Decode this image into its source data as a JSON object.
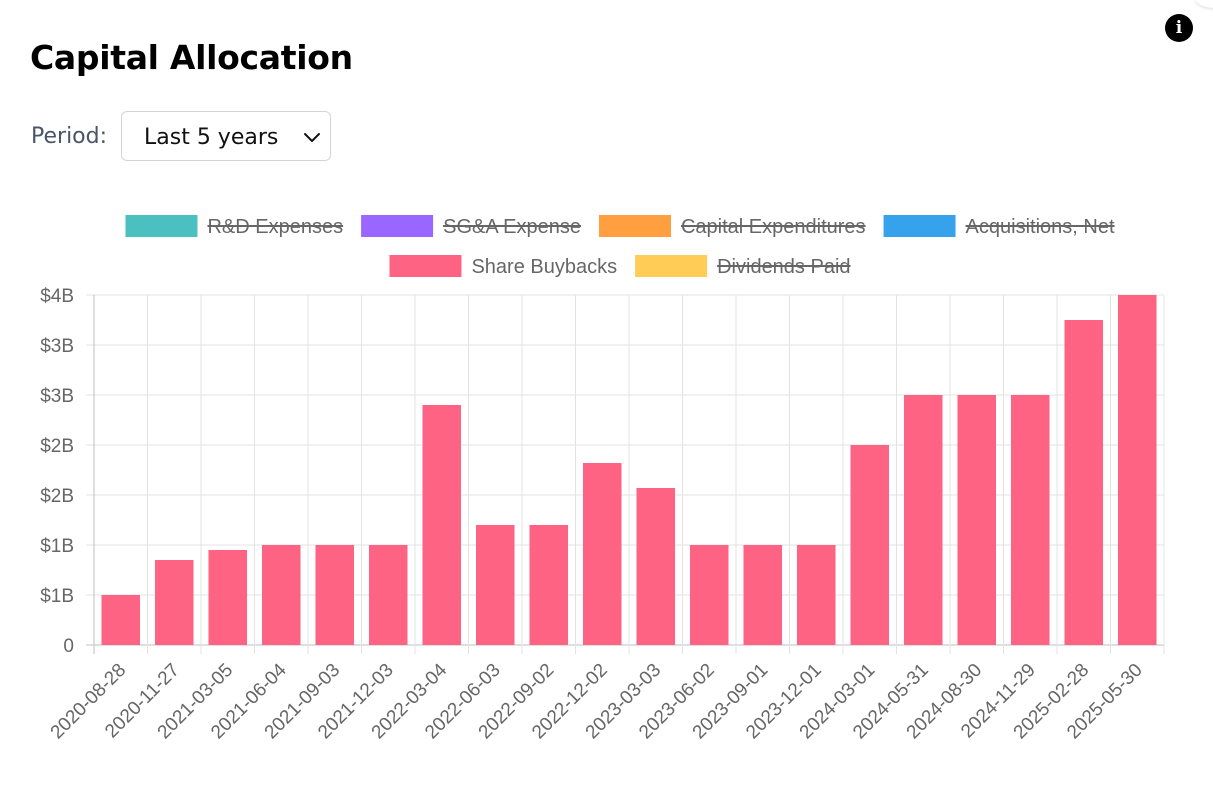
{
  "header": {
    "title": "Capital Allocation",
    "info_icon": "info-icon"
  },
  "filters": {
    "period_label": "Period:",
    "period_value": "Last 5 years",
    "period_icon": "chevron-down-icon"
  },
  "colors": {
    "rd": "#4bc0c0",
    "sga": "#9966ff",
    "capex": "#ff9f40",
    "acquisitions": "#36a2eb",
    "buybacks": "#ff6384",
    "dividends": "#ffcd56"
  },
  "chart_data": {
    "type": "bar",
    "title": "",
    "xlabel": "",
    "ylabel": "",
    "ylim": [
      0,
      3500000000
    ],
    "y_ticks": [
      {
        "value": 0,
        "label": "0"
      },
      {
        "value": 500000000,
        "label": "$1B"
      },
      {
        "value": 1000000000,
        "label": "$1B"
      },
      {
        "value": 1500000000,
        "label": "$2B"
      },
      {
        "value": 2000000000,
        "label": "$2B"
      },
      {
        "value": 2500000000,
        "label": "$3B"
      },
      {
        "value": 3000000000,
        "label": "$3B"
      },
      {
        "value": 3500000000,
        "label": "$4B"
      }
    ],
    "legend": [
      {
        "name": "R&D Expenses",
        "color": "#4bc0c0",
        "hidden": true
      },
      {
        "name": "SG&A Expense",
        "color": "#9966ff",
        "hidden": true
      },
      {
        "name": "Capital Expenditures",
        "color": "#ff9f40",
        "hidden": true
      },
      {
        "name": "Acquisitions, Net",
        "color": "#36a2eb",
        "hidden": true
      },
      {
        "name": "Share Buybacks",
        "color": "#ff6384",
        "hidden": false
      },
      {
        "name": "Dividends Paid",
        "color": "#ffcd56",
        "hidden": true
      }
    ],
    "legend_position": "top",
    "categories": [
      "2020-08-28",
      "2020-11-27",
      "2021-03-05",
      "2021-06-04",
      "2021-09-03",
      "2021-12-03",
      "2022-03-04",
      "2022-06-03",
      "2022-09-02",
      "2022-12-02",
      "2023-03-03",
      "2023-06-02",
      "2023-09-01",
      "2023-12-01",
      "2024-03-01",
      "2024-05-31",
      "2024-08-30",
      "2024-11-29",
      "2025-02-28",
      "2025-05-30"
    ],
    "series": [
      {
        "name": "Share Buybacks",
        "color": "#ff6384",
        "values": [
          500000000,
          850000000,
          950000000,
          1000000000,
          1000000000,
          1000000000,
          2400000000,
          1200000000,
          1200000000,
          1820000000,
          1570000000,
          1000000000,
          1000000000,
          1000000000,
          2000000000,
          2500000000,
          2500000000,
          2500000000,
          3250000000,
          3500000000
        ]
      }
    ],
    "grid": true
  }
}
